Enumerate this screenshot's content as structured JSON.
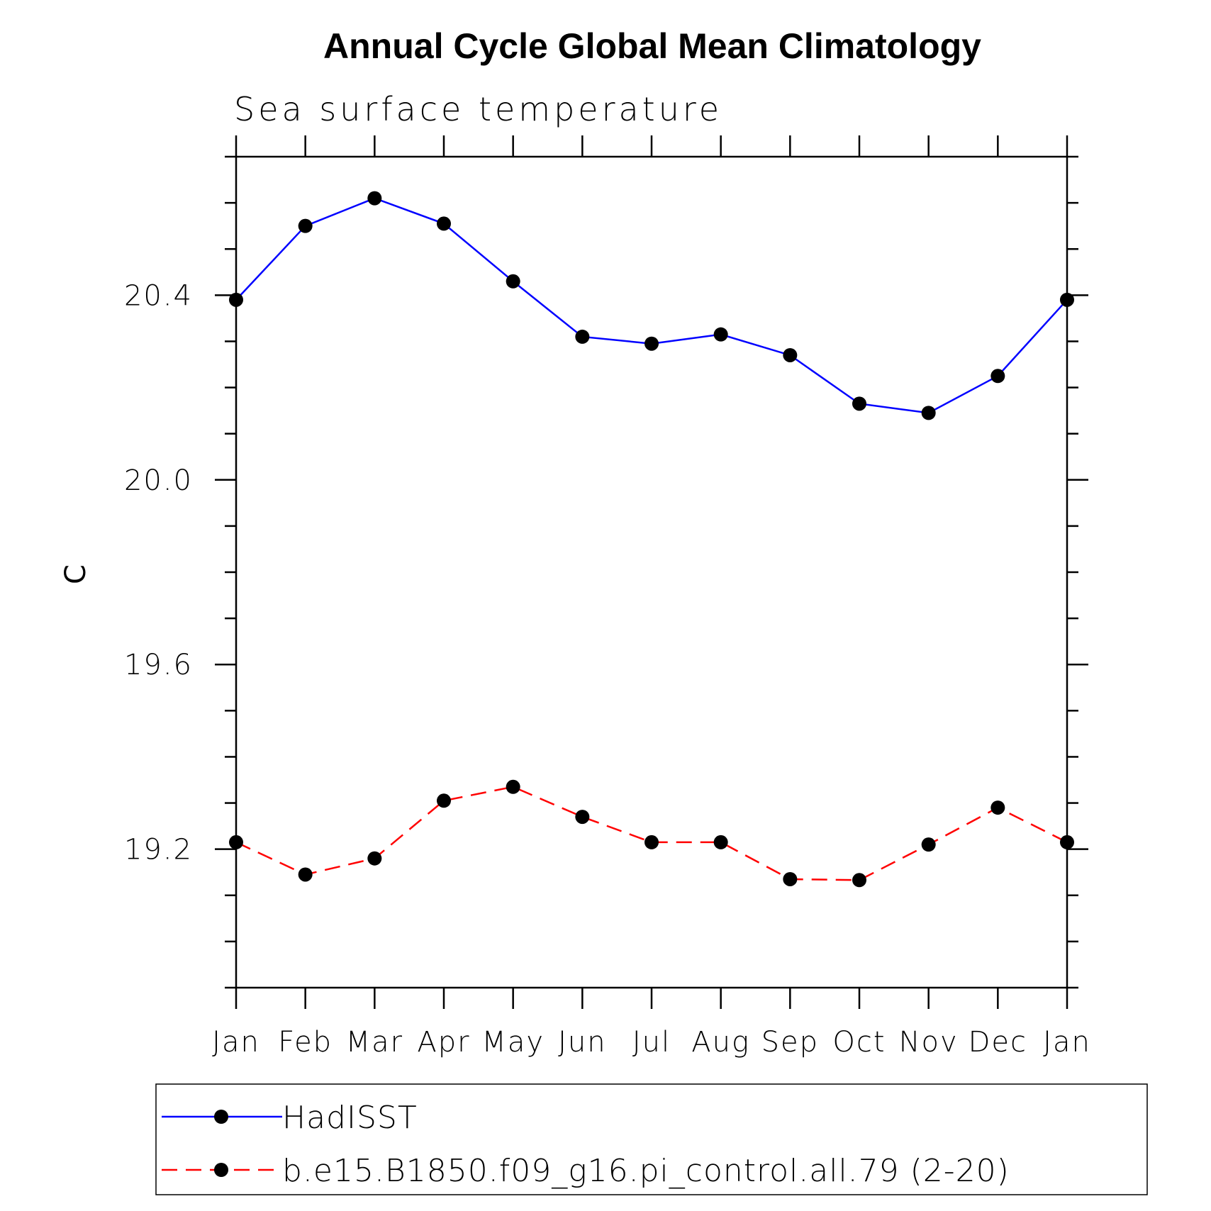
{
  "chart_data": {
    "type": "line",
    "title": "Annual Cycle Global Mean Climatology",
    "subtitle": "Sea surface temperature",
    "xlabel": "",
    "ylabel": "C",
    "categories": [
      "Jan",
      "Feb",
      "Mar",
      "Apr",
      "May",
      "Jun",
      "Jul",
      "Aug",
      "Sep",
      "Oct",
      "Nov",
      "Dec",
      "Jan"
    ],
    "ylim": [
      18.9,
      20.7
    ],
    "yticks": [
      19.2,
      19.6,
      20.0,
      20.4
    ],
    "ytick_labels": [
      "19.2",
      "19.6",
      "20.0",
      "20.4"
    ],
    "series": [
      {
        "name": "HadISST",
        "color": "#0000ff",
        "dash": "solid",
        "marker": "filled-circle",
        "values": [
          20.39,
          20.55,
          20.61,
          20.555,
          20.43,
          20.31,
          20.295,
          20.315,
          20.27,
          20.165,
          20.145,
          20.225,
          20.39
        ]
      },
      {
        "name": "b.e15.B1850.f09_g16.pi_control.all.79 (2-20)",
        "color": "#ff0000",
        "dash": "dashed",
        "marker": "filled-circle",
        "values": [
          19.215,
          19.145,
          19.18,
          19.305,
          19.335,
          19.27,
          19.215,
          19.215,
          19.135,
          19.133,
          19.21,
          19.29,
          19.215
        ]
      }
    ],
    "legend_position": "bottom",
    "grid": false
  }
}
